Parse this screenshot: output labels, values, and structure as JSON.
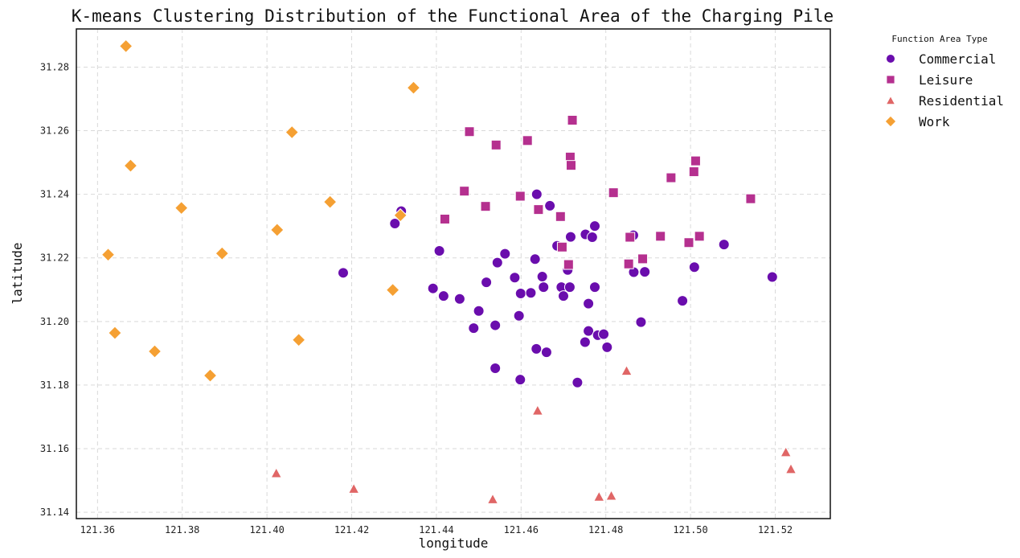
{
  "chart_data": {
    "type": "scatter",
    "title": "K-means Clustering Distribution of the Functional Area of the Charging Pile",
    "xlabel": "longitude",
    "ylabel": "latitude",
    "xlim": [
      121.355,
      121.533
    ],
    "ylim": [
      31.138,
      31.292
    ],
    "xticks": [
      "121.36",
      "121.38",
      "121.40",
      "121.42",
      "121.44",
      "121.46",
      "121.48",
      "121.50",
      "121.52"
    ],
    "yticks": [
      "31.14",
      "31.16",
      "31.18",
      "31.20",
      "31.22",
      "31.24",
      "31.26",
      "31.28"
    ],
    "grid": true,
    "legend": {
      "title": "Function Area Type",
      "placement": "outside-top-right"
    },
    "series": [
      {
        "name": "Commercial",
        "marker": "circle",
        "color": "#6a0dad",
        "points": [
          [
            121.418,
            31.2153
          ],
          [
            121.4302,
            31.2308
          ],
          [
            121.4317,
            31.2347
          ],
          [
            121.4392,
            31.2104
          ],
          [
            121.4407,
            31.2222
          ],
          [
            121.4417,
            31.208
          ],
          [
            121.4455,
            31.2071
          ],
          [
            121.4488,
            31.1979
          ],
          [
            121.45,
            31.2033
          ],
          [
            121.4518,
            31.2123
          ],
          [
            121.4539,
            31.1853
          ],
          [
            121.4539,
            31.1988
          ],
          [
            121.4544,
            31.2185
          ],
          [
            121.4562,
            31.2213
          ],
          [
            121.4585,
            31.2138
          ],
          [
            121.4595,
            31.2018
          ],
          [
            121.4598,
            31.1817
          ],
          [
            121.4599,
            31.2088
          ],
          [
            121.4623,
            31.209
          ],
          [
            121.4633,
            31.2196
          ],
          [
            121.4636,
            31.1914
          ],
          [
            121.4637,
            31.24
          ],
          [
            121.465,
            31.2141
          ],
          [
            121.4653,
            31.2108
          ],
          [
            121.466,
            31.1903
          ],
          [
            121.4668,
            31.2364
          ],
          [
            121.4685,
            31.2238
          ],
          [
            121.4695,
            31.2108
          ],
          [
            121.47,
            31.208
          ],
          [
            121.471,
            31.2162
          ],
          [
            121.4715,
            31.2108
          ],
          [
            121.4717,
            31.2266
          ],
          [
            121.4733,
            31.1808
          ],
          [
            121.4751,
            31.1935
          ],
          [
            121.4752,
            31.2274
          ],
          [
            121.4759,
            31.2056
          ],
          [
            121.4759,
            31.197
          ],
          [
            121.4768,
            31.2265
          ],
          [
            121.4774,
            31.23
          ],
          [
            121.4774,
            31.2108
          ],
          [
            121.4781,
            31.1957
          ],
          [
            121.4795,
            31.196
          ],
          [
            121.4803,
            31.1919
          ],
          [
            121.4865,
            31.2271
          ],
          [
            121.4866,
            31.2155
          ],
          [
            121.4883,
            31.1998
          ],
          [
            121.4892,
            31.2156
          ],
          [
            121.4981,
            31.2065
          ],
          [
            121.5009,
            31.2171
          ],
          [
            121.5079,
            31.2242
          ],
          [
            121.5193,
            31.214
          ]
        ]
      },
      {
        "name": "Leisure",
        "marker": "square",
        "color": "#b5308f",
        "points": [
          [
            121.442,
            31.2322
          ],
          [
            121.4466,
            31.241
          ],
          [
            121.4478,
            31.2597
          ],
          [
            121.4516,
            31.2362
          ],
          [
            121.4541,
            31.2555
          ],
          [
            121.4598,
            31.2394
          ],
          [
            121.4615,
            31.2569
          ],
          [
            121.4641,
            31.2352
          ],
          [
            121.4693,
            31.233
          ],
          [
            121.4697,
            31.2234
          ],
          [
            121.4712,
            31.2179
          ],
          [
            121.4716,
            31.2517
          ],
          [
            121.4718,
            31.2491
          ],
          [
            121.4721,
            31.2633
          ],
          [
            121.4818,
            31.2405
          ],
          [
            121.4854,
            31.2181
          ],
          [
            121.4857,
            31.2265
          ],
          [
            121.4887,
            31.2197
          ],
          [
            121.4929,
            31.2268
          ],
          [
            121.4954,
            31.2452
          ],
          [
            121.4996,
            31.2248
          ],
          [
            121.5008,
            31.2471
          ],
          [
            121.5012,
            31.2505
          ],
          [
            121.5021,
            31.2268
          ],
          [
            121.5142,
            31.2386
          ]
        ]
      },
      {
        "name": "Residential",
        "marker": "triangle",
        "color": "#e06666",
        "points": [
          [
            121.4022,
            31.1523
          ],
          [
            121.4205,
            31.1474
          ],
          [
            121.4533,
            31.1441
          ],
          [
            121.4639,
            31.172
          ],
          [
            121.4784,
            31.1449
          ],
          [
            121.4813,
            31.1452
          ],
          [
            121.4849,
            31.1845
          ],
          [
            121.5225,
            31.1589
          ],
          [
            121.5237,
            31.1536
          ]
        ]
      },
      {
        "name": "Work",
        "marker": "diamond",
        "color": "#f5a033",
        "points": [
          [
            121.3625,
            31.221
          ],
          [
            121.3641,
            31.1964
          ],
          [
            121.3667,
            31.2866
          ],
          [
            121.3678,
            31.249
          ],
          [
            121.3735,
            31.1906
          ],
          [
            121.3798,
            31.2357
          ],
          [
            121.3866,
            31.183
          ],
          [
            121.3894,
            31.2214
          ],
          [
            121.4024,
            31.2288
          ],
          [
            121.4059,
            31.2595
          ],
          [
            121.4075,
            31.1942
          ],
          [
            121.4149,
            31.2376
          ],
          [
            121.4297,
            31.2099
          ],
          [
            121.4315,
            31.2334
          ],
          [
            121.4346,
            31.2735
          ]
        ]
      }
    ]
  }
}
